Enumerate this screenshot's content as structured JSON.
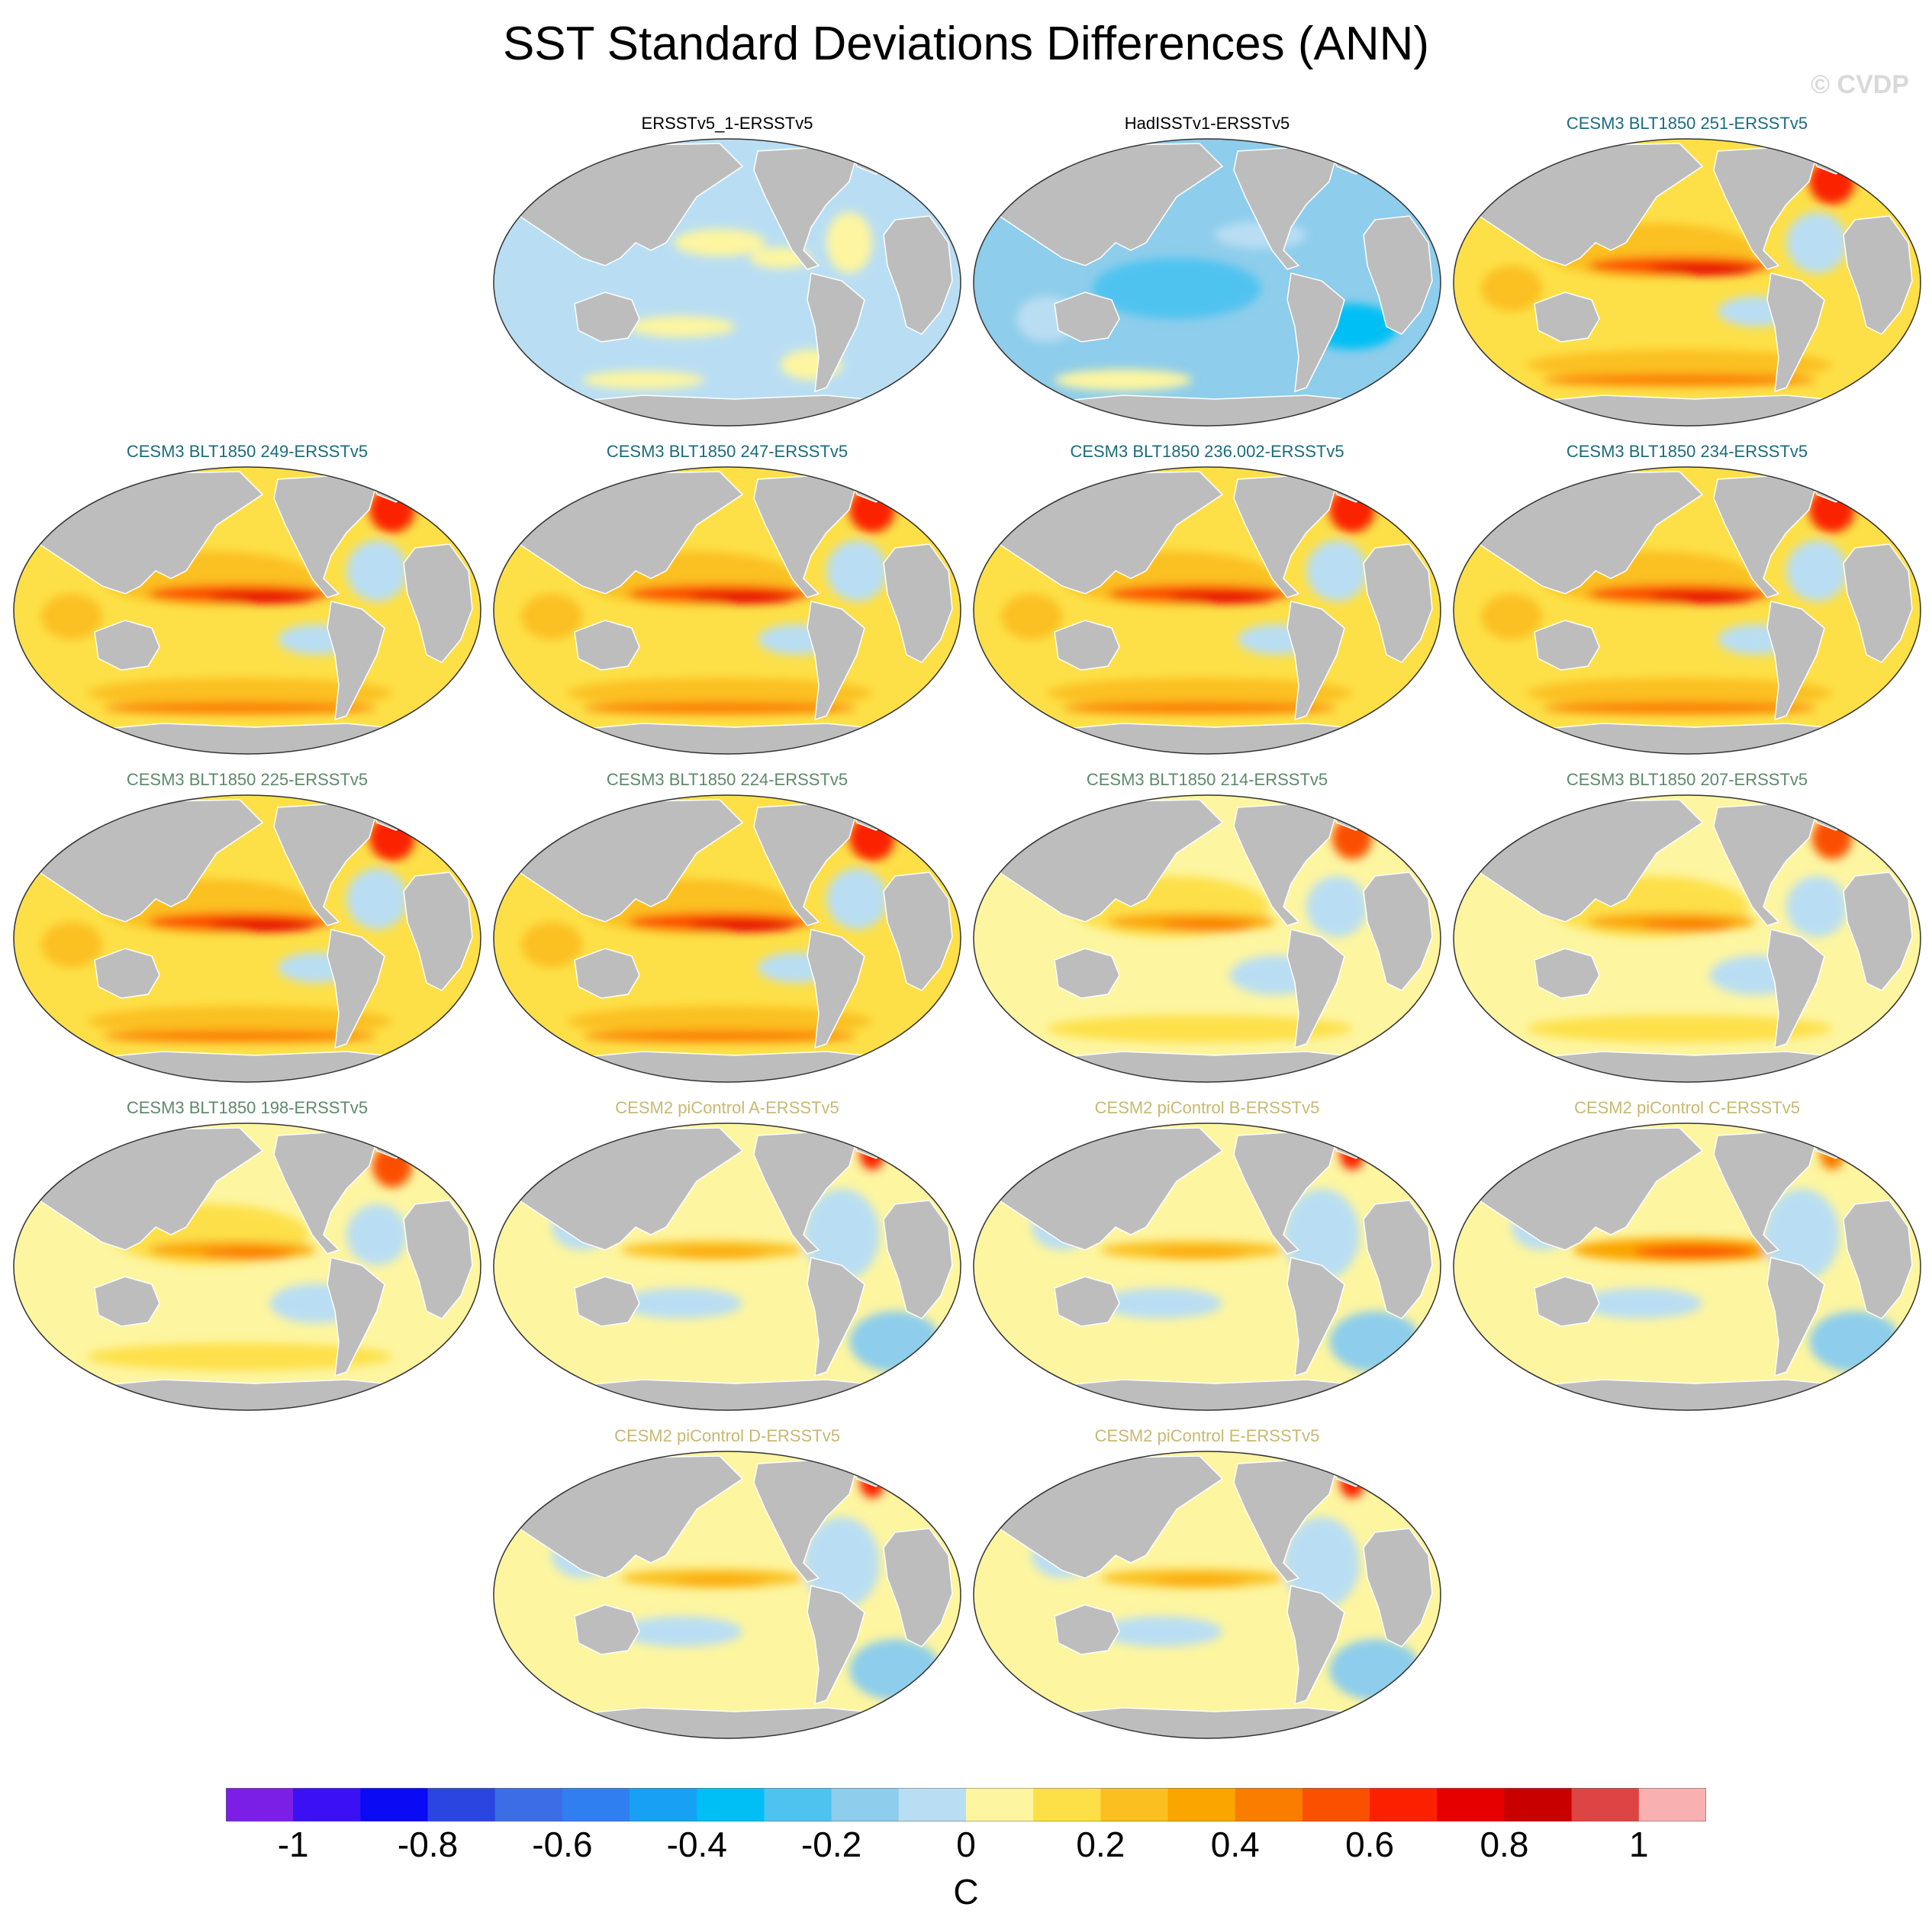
{
  "figure": {
    "title": "SST Standard Deviations Differences (ANN)",
    "watermark": "© CVDP"
  },
  "panels": [
    {
      "title": "ERSSTv5_1-ERSSTv5",
      "title_color": "#000000",
      "pattern": "neutral-cool",
      "row": 0,
      "col": 1
    },
    {
      "title": "HadISSTv1-ERSSTv5",
      "title_color": "#000000",
      "pattern": "cool",
      "row": 0,
      "col": 2
    },
    {
      "title": "CESM3 BLT1850 251-ERSSTv5",
      "title_color": "#1a6b80",
      "pattern": "warm-strong",
      "row": 0,
      "col": 3
    },
    {
      "title": "CESM3 BLT1850 249-ERSSTv5",
      "title_color": "#1a6b80",
      "pattern": "warm-strong",
      "row": 1,
      "col": 0
    },
    {
      "title": "CESM3 BLT1850 247-ERSSTv5",
      "title_color": "#1a6b80",
      "pattern": "warm-strong",
      "row": 1,
      "col": 1
    },
    {
      "title": "CESM3 BLT1850 236.002-ERSSTv5",
      "title_color": "#1a6b80",
      "pattern": "warm-strong",
      "row": 1,
      "col": 2
    },
    {
      "title": "CESM3 BLT1850 234-ERSSTv5",
      "title_color": "#1a6b80",
      "pattern": "warm-strong",
      "row": 1,
      "col": 3
    },
    {
      "title": "CESM3 BLT1850 225-ERSSTv5",
      "title_color": "#5c8a6a",
      "pattern": "warm-strong",
      "row": 2,
      "col": 0
    },
    {
      "title": "CESM3 BLT1850 224-ERSSTv5",
      "title_color": "#5c8a6a",
      "pattern": "warm-strong",
      "row": 2,
      "col": 1
    },
    {
      "title": "CESM3 BLT1850 214-ERSSTv5",
      "title_color": "#5c8a6a",
      "pattern": "warm",
      "row": 2,
      "col": 2
    },
    {
      "title": "CESM3 BLT1850 207-ERSSTv5",
      "title_color": "#5c8a6a",
      "pattern": "warm",
      "row": 2,
      "col": 3
    },
    {
      "title": "CESM3 BLT1850 198-ERSSTv5",
      "title_color": "#5c8a6a",
      "pattern": "warm",
      "row": 3,
      "col": 0
    },
    {
      "title": "CESM2 piControl A-ERSSTv5",
      "title_color": "#c9b870",
      "pattern": "mixed",
      "row": 3,
      "col": 1
    },
    {
      "title": "CESM2 piControl B-ERSSTv5",
      "title_color": "#c9b870",
      "pattern": "mixed",
      "row": 3,
      "col": 2
    },
    {
      "title": "CESM2 piControl C-ERSSTv5",
      "title_color": "#c9b870",
      "pattern": "mixed-enso",
      "row": 3,
      "col": 3
    },
    {
      "title": "CESM2 piControl D-ERSSTv5",
      "title_color": "#c9b870",
      "pattern": "mixed",
      "row": 4,
      "col": 1
    },
    {
      "title": "CESM2 piControl E-ERSSTv5",
      "title_color": "#c9b870",
      "pattern": "mixed",
      "row": 4,
      "col": 2
    }
  ],
  "colorbar": {
    "colors": [
      "#7b1fe6",
      "#3b10f5",
      "#0a0af5",
      "#2b45e0",
      "#3d6de6",
      "#2f7ff0",
      "#18a0f5",
      "#00bff5",
      "#4fc3f0",
      "#8ecdeb",
      "#b9def3",
      "#fdf5a0",
      "#fde048",
      "#fbc020",
      "#fba500",
      "#fb7d00",
      "#fb5000",
      "#fb2000",
      "#e60000",
      "#c80000",
      "#dd4444",
      "#f9b0b0"
    ],
    "ticks": [
      {
        "label": "-1",
        "value": -1
      },
      {
        "label": "-0.8",
        "value": -0.8
      },
      {
        "label": "-0.6",
        "value": -0.6
      },
      {
        "label": "-0.4",
        "value": -0.4
      },
      {
        "label": "-0.2",
        "value": -0.2
      },
      {
        "label": "0",
        "value": 0
      },
      {
        "label": "0.2",
        "value": 0.2
      },
      {
        "label": "0.4",
        "value": 0.4
      },
      {
        "label": "0.6",
        "value": 0.6
      },
      {
        "label": "0.8",
        "value": 0.8
      },
      {
        "label": "1",
        "value": 1
      }
    ],
    "range": [
      -1.1,
      1.1
    ],
    "unit": "C"
  },
  "colors": {
    "land": "#bdbdbd",
    "coast": "#ffffff",
    "outline": "#333333"
  }
}
